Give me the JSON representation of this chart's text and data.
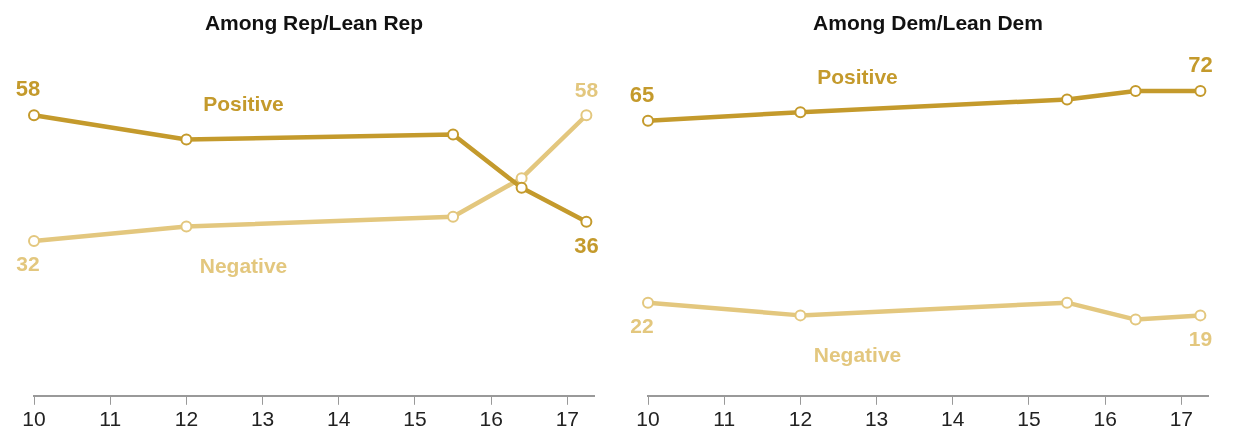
{
  "chart_data": [
    {
      "type": "line",
      "title": "Among Rep/Lean Rep",
      "x": [
        10,
        12,
        15.5,
        16.4,
        17.25
      ],
      "xlim": [
        10,
        17.35
      ],
      "xticks": [
        10,
        11,
        12,
        13,
        14,
        15,
        16,
        17
      ],
      "tick_labels": "x",
      "grid": false,
      "legend": false,
      "marker": "circle",
      "series": [
        {
          "name": "Positive",
          "color": "#c49a2c",
          "values": [
            58,
            53,
            54,
            43,
            36
          ],
          "value_labels": [
            "58",
            null,
            null,
            null,
            "36"
          ]
        },
        {
          "name": "Negative",
          "color": "#e3c77e",
          "values": [
            32,
            35,
            37,
            45,
            58
          ],
          "value_labels": [
            "32",
            null,
            null,
            null,
            "58"
          ]
        }
      ]
    },
    {
      "type": "line",
      "title": "Among Dem/Lean Dem",
      "x": [
        10,
        12,
        15.5,
        16.4,
        17.25
      ],
      "xlim": [
        10,
        17.35
      ],
      "xticks": [
        10,
        11,
        12,
        13,
        14,
        15,
        16,
        17
      ],
      "tick_labels": "x",
      "grid": false,
      "legend": false,
      "marker": "circle",
      "series": [
        {
          "name": "Positive",
          "color": "#c49a2c",
          "values": [
            65,
            67,
            70,
            72,
            72
          ],
          "value_labels": [
            "65",
            null,
            null,
            null,
            "72"
          ]
        },
        {
          "name": "Negative",
          "color": "#e3c77e",
          "values": [
            22,
            19,
            22,
            18,
            19
          ],
          "value_labels": [
            "22",
            null,
            null,
            null,
            "19"
          ]
        }
      ]
    }
  ]
}
